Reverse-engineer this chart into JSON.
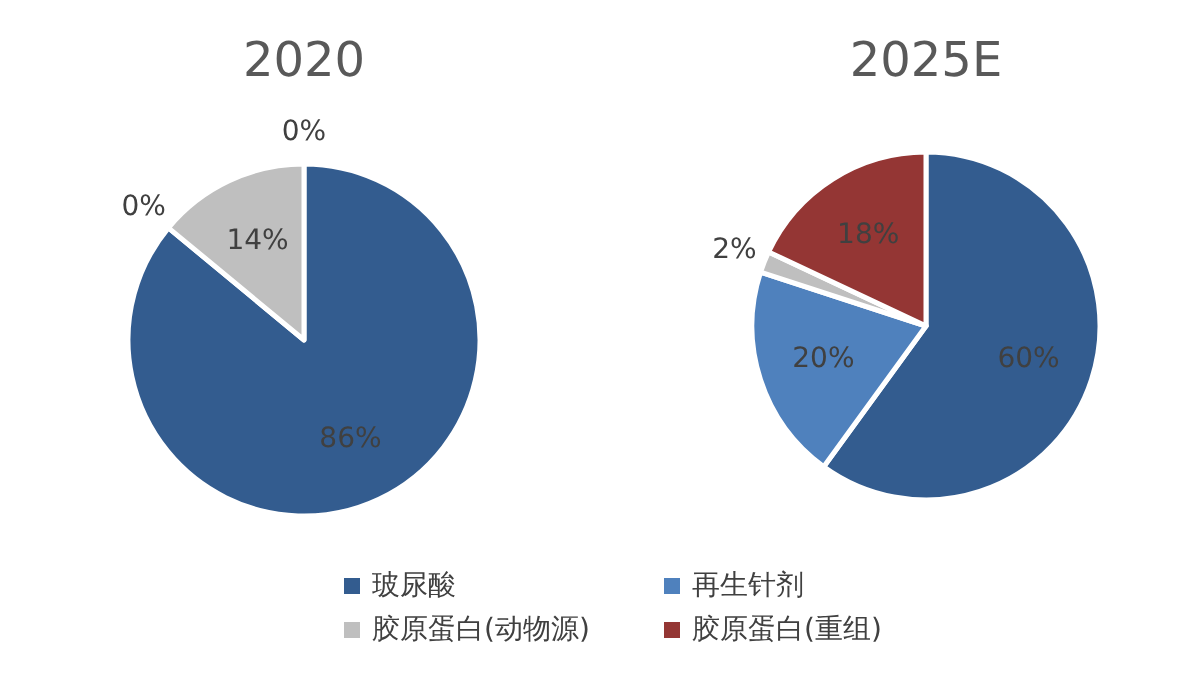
{
  "chart_data": [
    {
      "type": "pie",
      "title": "2020",
      "categories": [
        "玻尿酸",
        "再生针剂",
        "胶原蛋白(动物源)",
        "胶原蛋白(重组)"
      ],
      "values": [
        86,
        0,
        14,
        0
      ],
      "value_labels": [
        "86%",
        "0%",
        "14%",
        "0%"
      ],
      "colors": [
        "#335c8f",
        "#4f81bd",
        "#bfbfbf",
        "#943634"
      ],
      "legend": "bottom"
    },
    {
      "type": "pie",
      "title": "2025E",
      "values": [
        60,
        20,
        2,
        18
      ],
      "value_labels": [
        "60%",
        "20%",
        "2%",
        "18%"
      ],
      "colors": [
        "#335c8f",
        "#4f81bd",
        "#bfbfbf",
        "#943634"
      ]
    }
  ]
}
